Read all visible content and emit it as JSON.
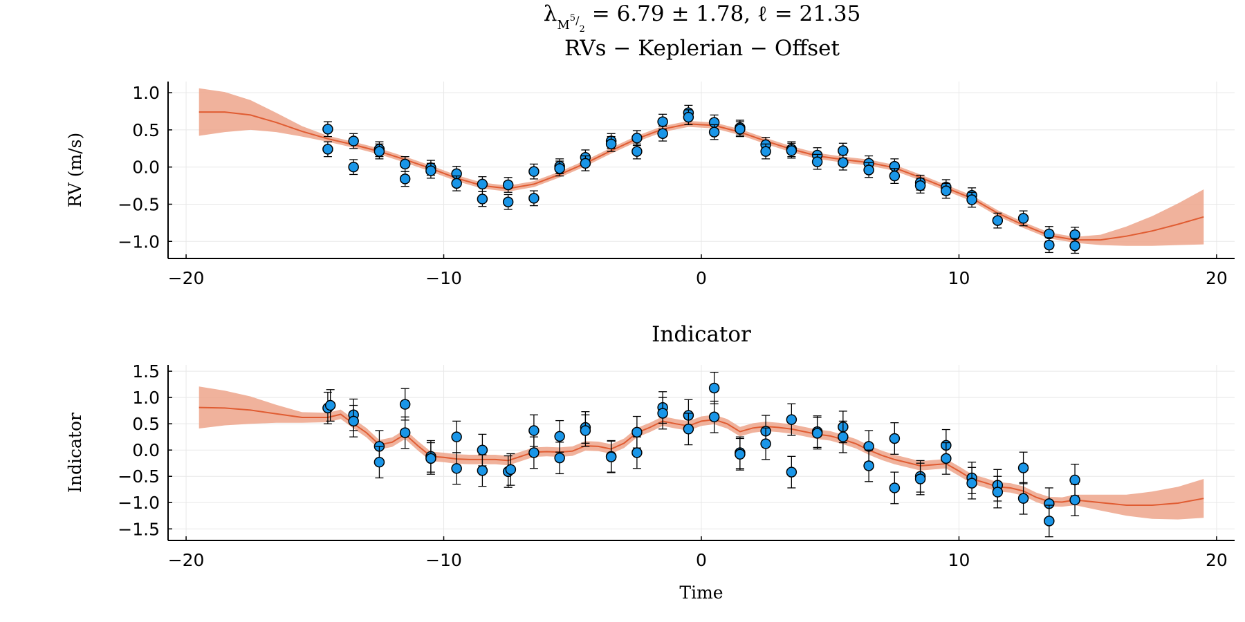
{
  "figure": {
    "title_line1_lambda": "λ",
    "title_line1_rest": "= 6.79 ± 1.78,  ℓ = 21.35",
    "title_line1_sub": "M",
    "title_line1_sup": "5",
    "title_line1_frac": "/",
    "title_line1_den": "2",
    "title_line2": "RVs − Keplerian − Offset",
    "colors": {
      "points": "#1a96e8",
      "line": "#e05c32",
      "band": "#eda48b",
      "grid": "#e8e8e8"
    }
  },
  "chart_data": [
    {
      "type": "scatter",
      "title": "",
      "xlabel": "",
      "ylabel": "RV (m/s)",
      "xlim": [
        -20.7,
        20.7
      ],
      "ylim": [
        -1.23,
        1.15
      ],
      "xticks": [
        -20,
        -10,
        0,
        10,
        20
      ],
      "xtick_labels": [
        "−20",
        "−10",
        "0",
        "10",
        "20"
      ],
      "yticks": [
        -1.0,
        -0.5,
        0.0,
        0.5,
        1.0
      ],
      "ytick_labels": [
        "−1.0",
        "−0.5",
        "0.0",
        "0.5",
        "1.0"
      ],
      "grid": true,
      "points": [
        {
          "x": -14.5,
          "y": 0.24,
          "err": 0.1
        },
        {
          "x": -14.5,
          "y": 0.51,
          "err": 0.1
        },
        {
          "x": -13.5,
          "y": 0.35,
          "err": 0.1
        },
        {
          "x": -13.5,
          "y": 0.0,
          "err": 0.1
        },
        {
          "x": -12.5,
          "y": 0.24,
          "err": 0.1
        },
        {
          "x": -12.5,
          "y": 0.21,
          "err": 0.1
        },
        {
          "x": -11.5,
          "y": 0.04,
          "err": 0.1
        },
        {
          "x": -11.5,
          "y": -0.16,
          "err": 0.1
        },
        {
          "x": -10.5,
          "y": -0.01,
          "err": 0.1
        },
        {
          "x": -10.5,
          "y": -0.05,
          "err": 0.1
        },
        {
          "x": -9.5,
          "y": -0.09,
          "err": 0.1
        },
        {
          "x": -9.5,
          "y": -0.22,
          "err": 0.1
        },
        {
          "x": -8.5,
          "y": -0.23,
          "err": 0.1
        },
        {
          "x": -8.5,
          "y": -0.43,
          "err": 0.1
        },
        {
          "x": -7.5,
          "y": -0.24,
          "err": 0.1
        },
        {
          "x": -7.5,
          "y": -0.47,
          "err": 0.1
        },
        {
          "x": -6.5,
          "y": -0.06,
          "err": 0.1
        },
        {
          "x": -6.5,
          "y": -0.42,
          "err": 0.1
        },
        {
          "x": -5.5,
          "y": 0.01,
          "err": 0.1
        },
        {
          "x": -5.5,
          "y": -0.02,
          "err": 0.1
        },
        {
          "x": -4.5,
          "y": 0.13,
          "err": 0.1
        },
        {
          "x": -4.5,
          "y": 0.05,
          "err": 0.1
        },
        {
          "x": -3.5,
          "y": 0.35,
          "err": 0.1
        },
        {
          "x": -3.5,
          "y": 0.31,
          "err": 0.1
        },
        {
          "x": -2.5,
          "y": 0.39,
          "err": 0.1
        },
        {
          "x": -2.5,
          "y": 0.21,
          "err": 0.1
        },
        {
          "x": -1.5,
          "y": 0.61,
          "err": 0.1
        },
        {
          "x": -1.5,
          "y": 0.45,
          "err": 0.1
        },
        {
          "x": -0.5,
          "y": 0.73,
          "err": 0.1
        },
        {
          "x": -0.5,
          "y": 0.67,
          "err": 0.1
        },
        {
          "x": 0.5,
          "y": 0.6,
          "err": 0.1
        },
        {
          "x": 0.5,
          "y": 0.47,
          "err": 0.1
        },
        {
          "x": 1.5,
          "y": 0.53,
          "err": 0.1
        },
        {
          "x": 1.5,
          "y": 0.51,
          "err": 0.1
        },
        {
          "x": 2.5,
          "y": 0.3,
          "err": 0.1
        },
        {
          "x": 2.5,
          "y": 0.21,
          "err": 0.1
        },
        {
          "x": 3.5,
          "y": 0.24,
          "err": 0.1
        },
        {
          "x": 3.5,
          "y": 0.22,
          "err": 0.1
        },
        {
          "x": 4.5,
          "y": 0.16,
          "err": 0.1
        },
        {
          "x": 4.5,
          "y": 0.07,
          "err": 0.1
        },
        {
          "x": 5.5,
          "y": 0.22,
          "err": 0.1
        },
        {
          "x": 5.5,
          "y": 0.06,
          "err": 0.1
        },
        {
          "x": 6.5,
          "y": 0.05,
          "err": 0.1
        },
        {
          "x": 6.5,
          "y": -0.04,
          "err": 0.1
        },
        {
          "x": 7.5,
          "y": 0.01,
          "err": 0.1
        },
        {
          "x": 7.5,
          "y": -0.12,
          "err": 0.1
        },
        {
          "x": 8.5,
          "y": -0.21,
          "err": 0.1
        },
        {
          "x": 8.5,
          "y": -0.25,
          "err": 0.1
        },
        {
          "x": 9.5,
          "y": -0.27,
          "err": 0.1
        },
        {
          "x": 9.5,
          "y": -0.32,
          "err": 0.1
        },
        {
          "x": 10.5,
          "y": -0.38,
          "err": 0.1
        },
        {
          "x": 10.5,
          "y": -0.44,
          "err": 0.1
        },
        {
          "x": 11.5,
          "y": -0.72,
          "err": 0.1
        },
        {
          "x": 12.5,
          "y": -0.69,
          "err": 0.1
        },
        {
          "x": 13.5,
          "y": -0.9,
          "err": 0.1
        },
        {
          "x": 13.5,
          "y": -1.05,
          "err": 0.1
        },
        {
          "x": 14.5,
          "y": -0.91,
          "err": 0.1
        },
        {
          "x": 14.5,
          "y": -1.06,
          "err": 0.1
        }
      ],
      "model": {
        "x": [
          -19.5,
          -18.5,
          -17.5,
          -16.5,
          -15.5,
          -14.5,
          -13.5,
          -12.5,
          -11.5,
          -10.5,
          -9.5,
          -8.5,
          -7.5,
          -6.5,
          -5.5,
          -4.5,
          -3.5,
          -2.5,
          -1.5,
          -0.5,
          0.5,
          1.5,
          2.5,
          3.5,
          4.5,
          5.5,
          6.5,
          7.5,
          8.5,
          9.5,
          10.5,
          11.5,
          12.5,
          13.5,
          14.5,
          15.5,
          16.5,
          17.5,
          18.5,
          19.5
        ],
        "y": [
          0.74,
          0.74,
          0.7,
          0.6,
          0.48,
          0.38,
          0.3,
          0.21,
          0.1,
          -0.02,
          -0.15,
          -0.25,
          -0.29,
          -0.23,
          -0.1,
          0.05,
          0.22,
          0.38,
          0.51,
          0.58,
          0.56,
          0.47,
          0.35,
          0.24,
          0.15,
          0.1,
          0.06,
          -0.01,
          -0.14,
          -0.28,
          -0.42,
          -0.62,
          -0.78,
          -0.92,
          -0.98,
          -0.98,
          -0.93,
          -0.86,
          -0.77,
          -0.67
        ],
        "err": [
          0.32,
          0.27,
          0.2,
          0.13,
          0.07,
          0.04,
          0.04,
          0.04,
          0.04,
          0.04,
          0.04,
          0.04,
          0.04,
          0.04,
          0.04,
          0.04,
          0.04,
          0.04,
          0.04,
          0.04,
          0.04,
          0.04,
          0.04,
          0.04,
          0.04,
          0.04,
          0.04,
          0.04,
          0.04,
          0.04,
          0.04,
          0.04,
          0.04,
          0.04,
          0.04,
          0.07,
          0.13,
          0.2,
          0.28,
          0.37
        ]
      }
    },
    {
      "type": "scatter",
      "title": "Indicator",
      "xlabel": "Time",
      "ylabel": "Indicator",
      "xlim": [
        -20.7,
        20.7
      ],
      "ylim": [
        -1.72,
        1.62
      ],
      "xticks": [
        -20,
        -10,
        0,
        10,
        20
      ],
      "xtick_labels": [
        "−20",
        "−10",
        "0",
        "10",
        "20"
      ],
      "yticks": [
        -1.5,
        -1.0,
        -0.5,
        0.0,
        0.5,
        1.0,
        1.5
      ],
      "ytick_labels": [
        "−1.5",
        "−1.0",
        "−0.5",
        "0.0",
        "0.5",
        "1.0",
        "1.5"
      ],
      "grid": true,
      "points": [
        {
          "x": -14.5,
          "y": 0.8,
          "err": 0.3
        },
        {
          "x": -14.4,
          "y": 0.85,
          "err": 0.3
        },
        {
          "x": -13.5,
          "y": 0.67,
          "err": 0.3
        },
        {
          "x": -13.5,
          "y": 0.55,
          "err": 0.3
        },
        {
          "x": -12.5,
          "y": 0.07,
          "err": 0.3
        },
        {
          "x": -12.5,
          "y": -0.23,
          "err": 0.3
        },
        {
          "x": -11.5,
          "y": 0.87,
          "err": 0.3
        },
        {
          "x": -11.5,
          "y": 0.33,
          "err": 0.3
        },
        {
          "x": -10.5,
          "y": -0.12,
          "err": 0.3
        },
        {
          "x": -10.5,
          "y": -0.16,
          "err": 0.3
        },
        {
          "x": -9.5,
          "y": 0.25,
          "err": 0.3
        },
        {
          "x": -9.5,
          "y": -0.35,
          "err": 0.3
        },
        {
          "x": -8.5,
          "y": 0.0,
          "err": 0.3
        },
        {
          "x": -8.5,
          "y": -0.39,
          "err": 0.3
        },
        {
          "x": -7.5,
          "y": -0.41,
          "err": 0.3
        },
        {
          "x": -7.4,
          "y": -0.37,
          "err": 0.3
        },
        {
          "x": -6.5,
          "y": 0.37,
          "err": 0.3
        },
        {
          "x": -6.5,
          "y": -0.05,
          "err": 0.3
        },
        {
          "x": -5.5,
          "y": 0.26,
          "err": 0.3
        },
        {
          "x": -5.5,
          "y": -0.15,
          "err": 0.3
        },
        {
          "x": -4.5,
          "y": 0.43,
          "err": 0.3
        },
        {
          "x": -4.5,
          "y": 0.37,
          "err": 0.3
        },
        {
          "x": -3.5,
          "y": -0.12,
          "err": 0.3
        },
        {
          "x": -3.5,
          "y": -0.13,
          "err": 0.3
        },
        {
          "x": -2.5,
          "y": 0.34,
          "err": 0.3
        },
        {
          "x": -2.5,
          "y": -0.05,
          "err": 0.3
        },
        {
          "x": -1.5,
          "y": 0.81,
          "err": 0.3
        },
        {
          "x": -1.5,
          "y": 0.7,
          "err": 0.3
        },
        {
          "x": -0.5,
          "y": 0.66,
          "err": 0.3
        },
        {
          "x": -0.5,
          "y": 0.4,
          "err": 0.3
        },
        {
          "x": 0.5,
          "y": 1.18,
          "err": 0.3
        },
        {
          "x": 0.5,
          "y": 0.63,
          "err": 0.3
        },
        {
          "x": 1.5,
          "y": -0.05,
          "err": 0.3
        },
        {
          "x": 1.5,
          "y": -0.08,
          "err": 0.3
        },
        {
          "x": 2.5,
          "y": 0.36,
          "err": 0.3
        },
        {
          "x": 2.5,
          "y": 0.12,
          "err": 0.3
        },
        {
          "x": 3.5,
          "y": 0.58,
          "err": 0.3
        },
        {
          "x": 3.5,
          "y": -0.42,
          "err": 0.3
        },
        {
          "x": 4.5,
          "y": 0.35,
          "err": 0.3
        },
        {
          "x": 4.5,
          "y": 0.32,
          "err": 0.3
        },
        {
          "x": 5.5,
          "y": 0.44,
          "err": 0.3
        },
        {
          "x": 5.5,
          "y": 0.25,
          "err": 0.3
        },
        {
          "x": 6.5,
          "y": 0.07,
          "err": 0.3
        },
        {
          "x": 6.5,
          "y": -0.3,
          "err": 0.3
        },
        {
          "x": 7.5,
          "y": 0.22,
          "err": 0.3
        },
        {
          "x": 7.5,
          "y": -0.72,
          "err": 0.3
        },
        {
          "x": 8.5,
          "y": -0.5,
          "err": 0.3
        },
        {
          "x": 8.5,
          "y": -0.55,
          "err": 0.3
        },
        {
          "x": 9.5,
          "y": 0.09,
          "err": 0.3
        },
        {
          "x": 9.5,
          "y": -0.16,
          "err": 0.3
        },
        {
          "x": 10.5,
          "y": -0.53,
          "err": 0.3
        },
        {
          "x": 10.5,
          "y": -0.63,
          "err": 0.3
        },
        {
          "x": 11.5,
          "y": -0.67,
          "err": 0.3
        },
        {
          "x": 11.5,
          "y": -0.8,
          "err": 0.3
        },
        {
          "x": 12.5,
          "y": -0.34,
          "err": 0.3
        },
        {
          "x": 12.5,
          "y": -0.92,
          "err": 0.3
        },
        {
          "x": 13.5,
          "y": -1.02,
          "err": 0.3
        },
        {
          "x": 13.5,
          "y": -1.35,
          "err": 0.3
        },
        {
          "x": 14.5,
          "y": -0.57,
          "err": 0.3
        },
        {
          "x": 14.5,
          "y": -0.95,
          "err": 0.3
        }
      ],
      "model": {
        "x": [
          -19.5,
          -18.5,
          -17.5,
          -16.5,
          -15.5,
          -14.5,
          -14,
          -13.5,
          -13,
          -12.5,
          -12,
          -11.5,
          -11,
          -10.5,
          -10,
          -9.5,
          -9,
          -8.5,
          -8,
          -7.5,
          -7,
          -6.5,
          -6,
          -5.5,
          -5,
          -4.5,
          -4,
          -3.5,
          -3,
          -2.5,
          -2,
          -1.5,
          -1,
          -0.5,
          0,
          0.5,
          1,
          1.5,
          2,
          2.5,
          3,
          3.5,
          4,
          4.5,
          5,
          5.5,
          6,
          6.5,
          7,
          7.5,
          8,
          8.5,
          9,
          9.5,
          10,
          10.5,
          11,
          11.5,
          12,
          12.5,
          13,
          13.5,
          14,
          14.5,
          15.5,
          16.5,
          17.5,
          18.5,
          19.5
        ],
        "y": [
          0.81,
          0.8,
          0.76,
          0.69,
          0.62,
          0.62,
          0.68,
          0.5,
          0.33,
          0.1,
          0.15,
          0.3,
          0.08,
          -0.12,
          -0.14,
          -0.17,
          -0.18,
          -0.18,
          -0.18,
          -0.2,
          -0.12,
          -0.04,
          -0.03,
          -0.04,
          -0.02,
          0.08,
          0.07,
          0.02,
          0.13,
          0.33,
          0.43,
          0.55,
          0.5,
          0.46,
          0.55,
          0.58,
          0.5,
          0.35,
          0.42,
          0.45,
          0.43,
          0.4,
          0.35,
          0.3,
          0.27,
          0.2,
          0.12,
          0.0,
          -0.1,
          -0.18,
          -0.24,
          -0.3,
          -0.28,
          -0.26,
          -0.4,
          -0.55,
          -0.62,
          -0.7,
          -0.72,
          -0.78,
          -0.9,
          -0.98,
          -0.99,
          -0.95,
          -1.0,
          -1.05,
          -1.05,
          -1.01,
          -0.92
        ],
        "err": [
          0.4,
          0.33,
          0.26,
          0.17,
          0.1,
          0.09,
          0.09,
          0.09,
          0.09,
          0.09,
          0.09,
          0.09,
          0.09,
          0.09,
          0.09,
          0.09,
          0.09,
          0.09,
          0.09,
          0.09,
          0.09,
          0.09,
          0.09,
          0.09,
          0.09,
          0.09,
          0.09,
          0.09,
          0.09,
          0.09,
          0.09,
          0.09,
          0.09,
          0.09,
          0.09,
          0.09,
          0.09,
          0.09,
          0.09,
          0.09,
          0.09,
          0.09,
          0.09,
          0.09,
          0.09,
          0.09,
          0.09,
          0.09,
          0.09,
          0.09,
          0.09,
          0.09,
          0.09,
          0.09,
          0.09,
          0.09,
          0.09,
          0.09,
          0.09,
          0.09,
          0.09,
          0.09,
          0.09,
          0.1,
          0.15,
          0.2,
          0.26,
          0.31,
          0.37
        ]
      }
    }
  ]
}
